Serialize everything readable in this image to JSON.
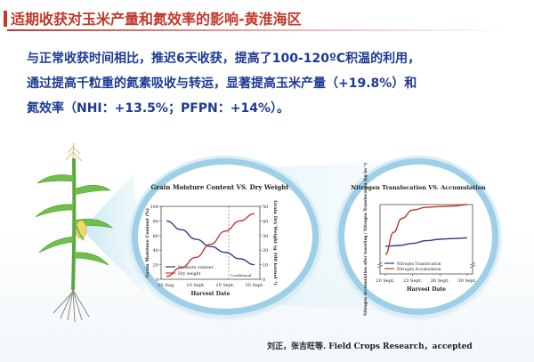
{
  "slide": {
    "title": "适期收获对玉米产量和氮效率的影响-黄淮海区",
    "body_lines": [
      "与正常收获时间相比，推迟6天收获，提高了100-120ºC积温的利用，",
      "通过提高千粒重的氮素吸收与转运，显著提高玉米产量（+19.8%）和",
      "氮效率（NHI：+13.5%；PFPN：+14%）。"
    ],
    "citation": "刘正，张吉旺等. Field Crops Research，accepted",
    "colors": {
      "title": "#c0392b",
      "body": "#1f3a93",
      "series_blue": "#2e3a8c",
      "series_red": "#c0392b",
      "lens": "#9fcfe6"
    }
  },
  "chart_data": [
    {
      "type": "line",
      "title": "Grain Moisture Content VS. Dry Weight",
      "xlabel": "Harvest Date",
      "ylabel_left": "Grain Moisture Content (%)",
      "ylabel_right": "Grain Dry Weight (g 100 kernel⁻¹)",
      "categories": [
        "20 Aug.",
        "10 Sept.",
        "20 Sept.",
        "30 Sept."
      ],
      "ylim_left": [
        0,
        100
      ],
      "yticks_left": [
        "0",
        "20",
        "40",
        "60",
        "80",
        "100"
      ],
      "ylim_right": [
        0,
        50
      ],
      "yticks_right": [
        "0",
        "10",
        "20",
        "30",
        "40",
        "50"
      ],
      "legend_position": "bottom-left",
      "annotation": "Conditional",
      "series": [
        {
          "name": "Moisture content",
          "axis": "left",
          "color": "#2e3a8c",
          "x": [
            0,
            0.5,
            1,
            1.5,
            2,
            2.5,
            3
          ],
          "values": [
            80,
            68,
            55,
            45,
            37,
            28,
            20
          ]
        },
        {
          "name": "Dry weight",
          "axis": "right",
          "color": "#c0392b",
          "x": [
            0,
            0.5,
            1,
            1.5,
            2,
            2.5,
            3
          ],
          "values": [
            2,
            8,
            15,
            24,
            33,
            40,
            45
          ]
        }
      ]
    },
    {
      "type": "line",
      "title": "Nitrogen Translocation VS. Accumulation",
      "xlabel": "Harvest Date",
      "ylabel": "Nitrogen Accumulation after tasseling / Nitrogen Translocation (kg ha⁻¹)",
      "categories": [
        "20 Sept.",
        "23 Sept.",
        "26 Sept.",
        "30 Sept."
      ],
      "ylim": [
        0,
        50
      ],
      "yticks": [
        "0",
        "10",
        "20",
        "30",
        "40",
        "50"
      ],
      "legend_position": "bottom-left",
      "series": [
        {
          "name": "Nitrogen Translocation",
          "color": "#2e3a8c",
          "x": [
            0,
            0.5,
            1,
            1.5,
            2,
            2.5,
            3
          ],
          "values": [
            20,
            20.5,
            22,
            24,
            25,
            25.5,
            26
          ]
        },
        {
          "name": "Nitrogen Accumulation",
          "color": "#c0392b",
          "x": [
            0,
            0.3,
            0.6,
            1,
            1.5,
            2,
            2.5,
            3
          ],
          "values": [
            14,
            30,
            40,
            46,
            48,
            48.5,
            49,
            50
          ]
        }
      ]
    }
  ]
}
